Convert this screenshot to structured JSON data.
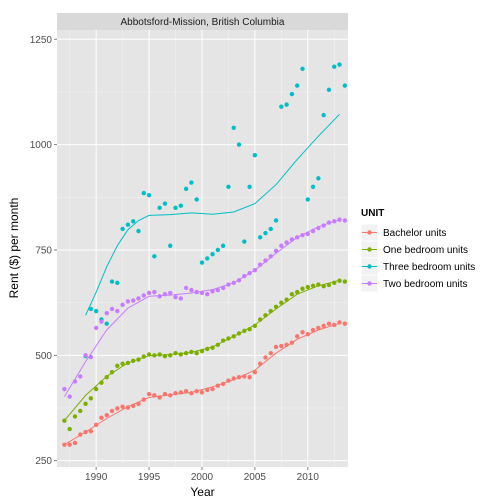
{
  "chart_data": {
    "type": "scatter",
    "title": "",
    "facet_label": "Abbotsford-Mission, British Columbia",
    "xlabel": "Year",
    "ylabel": "Rent ($) per month",
    "xlim": [
      1986.3,
      2013.8
    ],
    "ylim": [
      235,
      1272
    ],
    "x_ticks": [
      1990,
      1995,
      2000,
      2005,
      2010
    ],
    "x_minor_ticks": [
      1987.5,
      1992.5,
      1997.5,
      2002.5,
      2007.5,
      2012.5
    ],
    "y_ticks": [
      250,
      500,
      750,
      1000,
      1250
    ],
    "y_minor_ticks": [
      375,
      625,
      875,
      1125
    ],
    "grid": true,
    "legend": {
      "title": "UNIT",
      "position": "right"
    },
    "series": [
      {
        "name": "Bachelor units",
        "color": "#F8766D",
        "points": [
          [
            1987,
            288
          ],
          [
            1987.5,
            288
          ],
          [
            1988,
            292
          ],
          [
            1988.5,
            312
          ],
          [
            1989,
            318
          ],
          [
            1989.5,
            320
          ],
          [
            1990,
            335
          ],
          [
            1990.5,
            352
          ],
          [
            1991,
            358
          ],
          [
            1991.5,
            368
          ],
          [
            1992,
            374
          ],
          [
            1992.5,
            378
          ],
          [
            1993,
            376
          ],
          [
            1993.5,
            380
          ],
          [
            1994,
            385
          ],
          [
            1994.5,
            395
          ],
          [
            1995,
            408
          ],
          [
            1995.5,
            405
          ],
          [
            1996,
            400
          ],
          [
            1996.5,
            408
          ],
          [
            1997,
            405
          ],
          [
            1997.5,
            410
          ],
          [
            1998,
            412
          ],
          [
            1998.5,
            415
          ],
          [
            1999,
            410
          ],
          [
            1999.5,
            415
          ],
          [
            2000,
            412
          ],
          [
            2000.5,
            418
          ],
          [
            2001,
            420
          ],
          [
            2001.5,
            428
          ],
          [
            2002,
            432
          ],
          [
            2002.5,
            440
          ],
          [
            2003,
            445
          ],
          [
            2003.5,
            448
          ],
          [
            2004,
            450
          ],
          [
            2004.5,
            448
          ],
          [
            2005,
            460
          ],
          [
            2005.5,
            480
          ],
          [
            2006,
            495
          ],
          [
            2006.5,
            505
          ],
          [
            2007,
            520
          ],
          [
            2007.5,
            522
          ],
          [
            2008,
            525
          ],
          [
            2008.5,
            530
          ],
          [
            2009,
            545
          ],
          [
            2009.5,
            555
          ],
          [
            2010,
            550
          ],
          [
            2010.5,
            560
          ],
          [
            2011,
            565
          ],
          [
            2011.5,
            570
          ],
          [
            2012,
            575
          ],
          [
            2012.5,
            572
          ],
          [
            2013,
            578
          ],
          [
            2013.5,
            575
          ]
        ],
        "trend": [
          [
            1987,
            288
          ],
          [
            1989,
            318
          ],
          [
            1991,
            350
          ],
          [
            1993,
            378
          ],
          [
            1995,
            400
          ],
          [
            1997,
            406
          ],
          [
            1999,
            412
          ],
          [
            2001,
            425
          ],
          [
            2003,
            442
          ],
          [
            2005,
            465
          ],
          [
            2007,
            505
          ],
          [
            2009,
            538
          ],
          [
            2011,
            560
          ],
          [
            2013,
            576
          ]
        ]
      },
      {
        "name": "One bedroom units",
        "color": "#7CAE00",
        "points": [
          [
            1987,
            345
          ],
          [
            1987.5,
            325
          ],
          [
            1988,
            355
          ],
          [
            1988.5,
            368
          ],
          [
            1989,
            385
          ],
          [
            1989.5,
            398
          ],
          [
            1990,
            420
          ],
          [
            1990.5,
            435
          ],
          [
            1991,
            448
          ],
          [
            1991.5,
            460
          ],
          [
            1992,
            475
          ],
          [
            1992.5,
            480
          ],
          [
            1993,
            482
          ],
          [
            1993.5,
            487
          ],
          [
            1994,
            490
          ],
          [
            1994.5,
            497
          ],
          [
            1995,
            502
          ],
          [
            1995.5,
            500
          ],
          [
            1996,
            502
          ],
          [
            1996.5,
            498
          ],
          [
            1997,
            500
          ],
          [
            1997.5,
            505
          ],
          [
            1998,
            502
          ],
          [
            1998.5,
            505
          ],
          [
            1999,
            508
          ],
          [
            1999.5,
            505
          ],
          [
            2000,
            510
          ],
          [
            2000.5,
            515
          ],
          [
            2001,
            518
          ],
          [
            2001.5,
            525
          ],
          [
            2002,
            535
          ],
          [
            2002.5,
            540
          ],
          [
            2003,
            545
          ],
          [
            2003.5,
            552
          ],
          [
            2004,
            558
          ],
          [
            2004.5,
            562
          ],
          [
            2005,
            570
          ],
          [
            2005.5,
            585
          ],
          [
            2006,
            595
          ],
          [
            2006.5,
            605
          ],
          [
            2007,
            615
          ],
          [
            2007.5,
            625
          ],
          [
            2008,
            632
          ],
          [
            2008.5,
            645
          ],
          [
            2009,
            650
          ],
          [
            2009.5,
            658
          ],
          [
            2010,
            662
          ],
          [
            2010.5,
            665
          ],
          [
            2011,
            668
          ],
          [
            2011.5,
            664
          ],
          [
            2012,
            667
          ],
          [
            2012.5,
            672
          ],
          [
            2013,
            677
          ],
          [
            2013.5,
            675
          ]
        ],
        "trend": [
          [
            1987,
            345
          ],
          [
            1989,
            405
          ],
          [
            1991,
            450
          ],
          [
            1993,
            482
          ],
          [
            1995,
            499
          ],
          [
            1997,
            502
          ],
          [
            1999,
            507
          ],
          [
            2001,
            520
          ],
          [
            2003,
            545
          ],
          [
            2005,
            572
          ],
          [
            2007,
            610
          ],
          [
            2009,
            645
          ],
          [
            2011,
            665
          ],
          [
            2013,
            678
          ]
        ]
      },
      {
        "name": "Three bedroom units",
        "color": "#00BFC4",
        "points": [
          [
            1989,
            498
          ],
          [
            1989.5,
            610
          ],
          [
            1990,
            605
          ],
          [
            1990.5,
            585
          ],
          [
            1991,
            575
          ],
          [
            1991.5,
            675
          ],
          [
            1992,
            672
          ],
          [
            1992.5,
            800
          ],
          [
            1993,
            810
          ],
          [
            1993.5,
            818
          ],
          [
            1994,
            795
          ],
          [
            1994.5,
            885
          ],
          [
            1995,
            880
          ],
          [
            1995.5,
            735
          ],
          [
            1996,
            850
          ],
          [
            1996.5,
            860
          ],
          [
            1997,
            760
          ],
          [
            1997.5,
            850
          ],
          [
            1998,
            855
          ],
          [
            1998.5,
            895
          ],
          [
            1999,
            910
          ],
          [
            1999.5,
            870
          ],
          [
            2000,
            720
          ],
          [
            2000.5,
            730
          ],
          [
            2001,
            740
          ],
          [
            2001.5,
            750
          ],
          [
            2002,
            760
          ],
          [
            2002.5,
            900
          ],
          [
            2003,
            1040
          ],
          [
            2003.5,
            1000
          ],
          [
            2004,
            770
          ],
          [
            2004.5,
            900
          ],
          [
            2005,
            975
          ],
          [
            2005.5,
            780
          ],
          [
            2006,
            790
          ],
          [
            2006.5,
            800
          ],
          [
            2007,
            820
          ],
          [
            2007.5,
            1090
          ],
          [
            2008,
            1095
          ],
          [
            2008.5,
            1120
          ],
          [
            2009,
            1140
          ],
          [
            2009.5,
            1180
          ],
          [
            2010,
            870
          ],
          [
            2010.5,
            900
          ],
          [
            2011,
            920
          ],
          [
            2011.5,
            1070
          ],
          [
            2012,
            1130
          ],
          [
            2012.5,
            1185
          ],
          [
            2013,
            1190
          ],
          [
            2013.5,
            1140
          ]
        ],
        "trend": [
          [
            1989,
            595
          ],
          [
            1990,
            650
          ],
          [
            1991,
            710
          ],
          [
            1992,
            760
          ],
          [
            1993,
            798
          ],
          [
            1994,
            820
          ],
          [
            1995,
            832
          ],
          [
            1997,
            834
          ],
          [
            1999,
            838
          ],
          [
            2001,
            835
          ],
          [
            2003,
            840
          ],
          [
            2005,
            860
          ],
          [
            2007,
            905
          ],
          [
            2009,
            965
          ],
          [
            2011,
            1020
          ],
          [
            2013,
            1072
          ]
        ]
      },
      {
        "name": "Two bedroom units",
        "color": "#C77CFF",
        "points": [
          [
            1987,
            420
          ],
          [
            1987.5,
            402
          ],
          [
            1988,
            438
          ],
          [
            1988.5,
            450
          ],
          [
            1989,
            500
          ],
          [
            1989.5,
            496
          ],
          [
            1990,
            565
          ],
          [
            1990.5,
            580
          ],
          [
            1991,
            600
          ],
          [
            1991.5,
            610
          ],
          [
            1992,
            605
          ],
          [
            1992.5,
            620
          ],
          [
            1993,
            628
          ],
          [
            1993.5,
            630
          ],
          [
            1994,
            635
          ],
          [
            1994.5,
            642
          ],
          [
            1995,
            648
          ],
          [
            1995.5,
            650
          ],
          [
            1996,
            640
          ],
          [
            1996.5,
            645
          ],
          [
            1997,
            648
          ],
          [
            1997.5,
            638
          ],
          [
            1998,
            635
          ],
          [
            1998.5,
            660
          ],
          [
            1999,
            655
          ],
          [
            1999.5,
            650
          ],
          [
            2000,
            648
          ],
          [
            2000.5,
            645
          ],
          [
            2001,
            652
          ],
          [
            2001.5,
            655
          ],
          [
            2002,
            660
          ],
          [
            2002.5,
            668
          ],
          [
            2003,
            672
          ],
          [
            2003.5,
            678
          ],
          [
            2004,
            688
          ],
          [
            2004.5,
            695
          ],
          [
            2005,
            702
          ],
          [
            2005.5,
            715
          ],
          [
            2006,
            725
          ],
          [
            2006.5,
            735
          ],
          [
            2007,
            748
          ],
          [
            2007.5,
            760
          ],
          [
            2008,
            768
          ],
          [
            2008.5,
            775
          ],
          [
            2009,
            780
          ],
          [
            2009.5,
            785
          ],
          [
            2010,
            788
          ],
          [
            2010.5,
            795
          ],
          [
            2011,
            802
          ],
          [
            2011.5,
            808
          ],
          [
            2012,
            815
          ],
          [
            2012.5,
            818
          ],
          [
            2013,
            822
          ],
          [
            2013.5,
            820
          ]
        ],
        "trend": [
          [
            1987,
            402
          ],
          [
            1989,
            485
          ],
          [
            1991,
            560
          ],
          [
            1993,
            612
          ],
          [
            1995,
            640
          ],
          [
            1997,
            643
          ],
          [
            1999,
            648
          ],
          [
            2001,
            656
          ],
          [
            2003,
            672
          ],
          [
            2005,
            702
          ],
          [
            2007,
            742
          ],
          [
            2009,
            780
          ],
          [
            2011,
            805
          ],
          [
            2013,
            822
          ]
        ]
      }
    ]
  }
}
